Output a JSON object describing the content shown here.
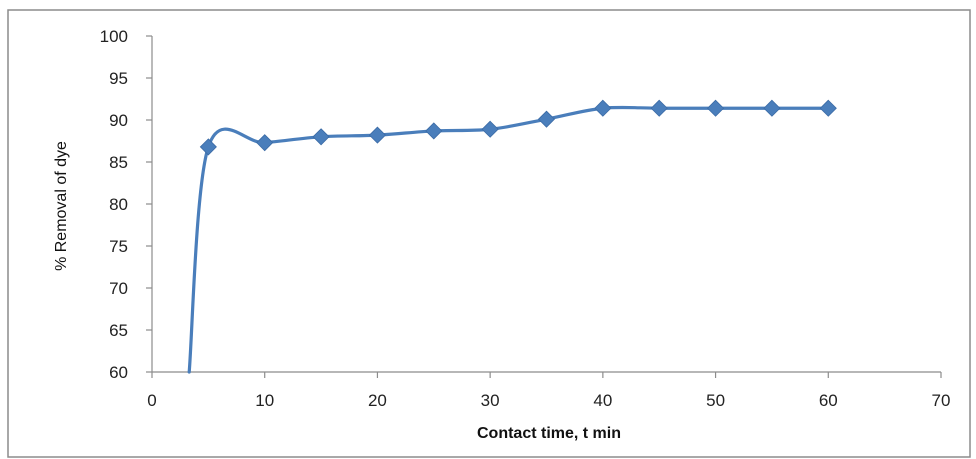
{
  "chart_data": {
    "type": "line",
    "title": "",
    "xlabel": "Contact time, t min",
    "ylabel": "% Removal of dye",
    "xlim": [
      0,
      70
    ],
    "ylim": [
      60,
      100
    ],
    "xticks": [
      0,
      10,
      20,
      30,
      40,
      50,
      60,
      70
    ],
    "yticks": [
      60,
      65,
      70,
      75,
      80,
      85,
      90,
      95,
      100
    ],
    "grid": false,
    "legend": "none",
    "colors": {
      "line": "#4a7ebb",
      "marker": "#4a7ebb",
      "axis": "#8c8c8c",
      "frame": "#8c8c8c"
    },
    "series": [
      {
        "marker": "diamond",
        "smooth": true,
        "points": [
          {
            "x": 3.3,
            "y": 60,
            "marker": false
          },
          {
            "x": 5,
            "y": 86.8
          },
          {
            "x": 10,
            "y": 87.3
          },
          {
            "x": 15,
            "y": 88.0
          },
          {
            "x": 20,
            "y": 88.2
          },
          {
            "x": 25,
            "y": 88.7
          },
          {
            "x": 30,
            "y": 88.9
          },
          {
            "x": 35,
            "y": 90.1
          },
          {
            "x": 40,
            "y": 91.4
          },
          {
            "x": 45,
            "y": 91.4
          },
          {
            "x": 50,
            "y": 91.4
          },
          {
            "x": 55,
            "y": 91.4
          },
          {
            "x": 60,
            "y": 91.4
          }
        ]
      }
    ]
  }
}
